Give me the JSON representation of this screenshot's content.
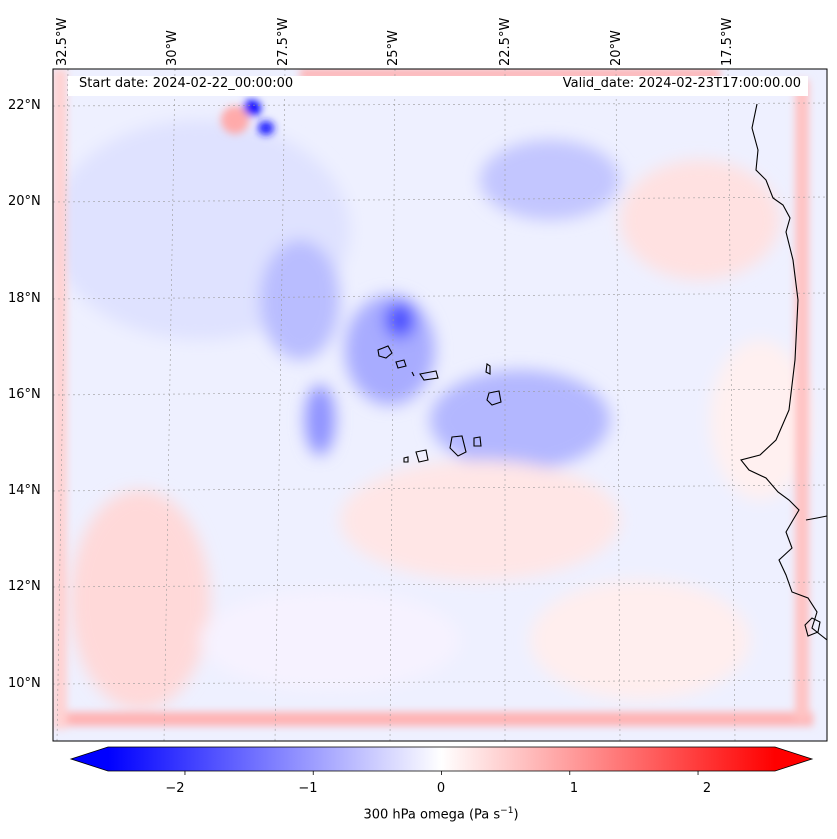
{
  "figure": {
    "start_date": "Start date: 2024-02-22_00:00:00",
    "valid_date": "Valid_date: 2024-02-23T17:00:00.00"
  },
  "map": {
    "lon_labels": [
      "32.5°W",
      "30°W",
      "27.5°W",
      "25°W",
      "22.5°W",
      "20°W",
      "17.5°W"
    ],
    "lat_labels": [
      "22°N",
      "20°N",
      "18°N",
      "16°N",
      "14°N",
      "12°N",
      "10°N"
    ],
    "field": "300 hPa omega",
    "colors": {
      "negative": "#0000ff",
      "positive": "#ff0000",
      "neutral": "#ffffff",
      "coast": "#000000"
    }
  },
  "colorbar": {
    "ticks": [
      "−2",
      "−1",
      "0",
      "1",
      "2"
    ],
    "tick_values": [
      -2,
      -1,
      0,
      1,
      2
    ],
    "range": [
      -2.6,
      2.6
    ],
    "label_main": "300 hPa omega (Pa s",
    "label_sup": "−1",
    "label_end": ")"
  }
}
